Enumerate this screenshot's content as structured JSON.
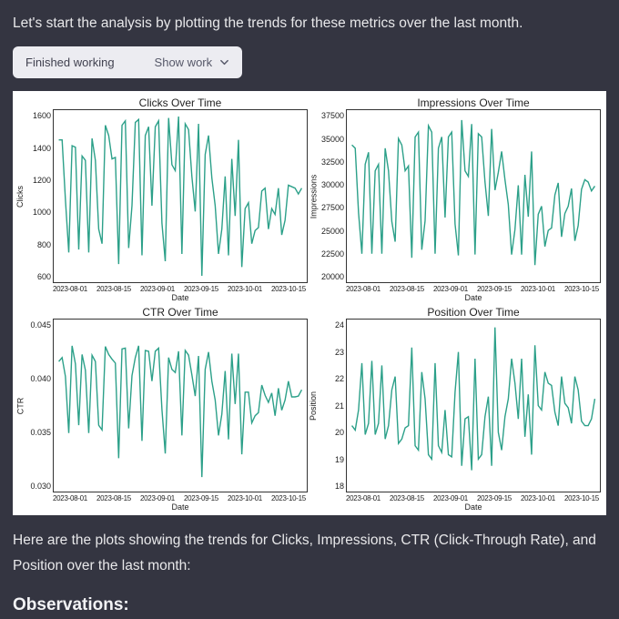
{
  "intro": "Let's start the analysis by plotting the trends for these metrics over the last month.",
  "pill": {
    "status": "Finished working",
    "action": "Show work"
  },
  "post": "Here are the plots showing the trends for Clicks, Impressions, CTR (Click-Through Rate), and Position over the last month:",
  "obs_heading": "Observations:",
  "chart": {
    "background_color": "#ffffff",
    "line_color": "#2ca089",
    "line_width": 1.4,
    "border_color": "#333333",
    "text_color": "#222222",
    "title_fontsize": 12,
    "tick_fontsize": 9,
    "x_ticks": [
      "2023-08-01",
      "2023-08-15",
      "2023-09-01",
      "2023-09-15",
      "2023-10-01",
      "2023-10-15"
    ],
    "x_label": "Date",
    "subplots": [
      {
        "title": "Clicks Over Time",
        "ylabel": "Clicks",
        "ylim": [
          520,
          1650
        ],
        "yticks": [
          "1600",
          "1400",
          "1200",
          "1000",
          "800",
          "600"
        ],
        "data": [
          1470,
          1470,
          1060,
          700,
          1430,
          1420,
          720,
          1360,
          1330,
          700,
          1480,
          1330,
          860,
          760,
          1570,
          1500,
          1340,
          1350,
          620,
          1570,
          1600,
          730,
          1020,
          1590,
          1610,
          680,
          1500,
          1560,
          1020,
          1560,
          1600,
          900,
          640,
          1620,
          1300,
          1260,
          1630,
          690,
          1580,
          1540,
          1220,
          980,
          1580,
          540,
          1370,
          1500,
          1210,
          1020,
          690,
          860,
          1220,
          680,
          1340,
          950,
          1470,
          600,
          1000,
          1040,
          760,
          850,
          870,
          1120,
          1140,
          860,
          1000,
          960,
          1140,
          820,
          920,
          1160,
          1150,
          1140,
          1100,
          1140
        ]
      },
      {
        "title": "Impressions Over Time",
        "ylabel": "Impressions",
        "ylim": [
          17500,
          38000
        ],
        "yticks": [
          "37500",
          "35000",
          "32500",
          "30000",
          "27500",
          "25000",
          "22500",
          "20000"
        ],
        "data": [
          34100,
          33700,
          25700,
          20600,
          31700,
          33200,
          20600,
          30900,
          31700,
          20600,
          33700,
          30900,
          24600,
          22100,
          34900,
          34100,
          30900,
          31500,
          20100,
          35100,
          35700,
          21100,
          24700,
          36500,
          35700,
          20600,
          33700,
          35100,
          25100,
          35100,
          35700,
          24300,
          20400,
          37200,
          30900,
          30200,
          36700,
          20500,
          35500,
          35100,
          29500,
          25300,
          36100,
          28500,
          30700,
          33300,
          29800,
          26700,
          20500,
          23600,
          29100,
          20500,
          30400,
          25200,
          33300,
          19200,
          25500,
          26500,
          21500,
          23500,
          23800,
          27900,
          29400,
          22700,
          25600,
          26500,
          28700,
          22200,
          24100,
          28600,
          29800,
          29500,
          28400,
          29000
        ]
      },
      {
        "title": "CTR Over Time",
        "ylabel": "CTR",
        "ylim": [
          0.027,
          0.048
        ],
        "yticks": [
          "0.045",
          "0.040",
          "0.035",
          "0.030"
        ],
        "data": [
          0.0431,
          0.0436,
          0.0412,
          0.034,
          0.0451,
          0.0428,
          0.035,
          0.044,
          0.042,
          0.034,
          0.0439,
          0.0431,
          0.035,
          0.0344,
          0.045,
          0.044,
          0.0434,
          0.0429,
          0.0308,
          0.0447,
          0.0448,
          0.0346,
          0.0413,
          0.0436,
          0.0451,
          0.033,
          0.0445,
          0.0444,
          0.0406,
          0.0444,
          0.0448,
          0.037,
          0.0314,
          0.0436,
          0.0421,
          0.0417,
          0.0444,
          0.0337,
          0.0445,
          0.0439,
          0.0414,
          0.0387,
          0.0438,
          0.0284,
          0.0421,
          0.0443,
          0.0406,
          0.0382,
          0.0337,
          0.0364,
          0.0419,
          0.0332,
          0.0441,
          0.0377,
          0.0441,
          0.0313,
          0.0392,
          0.0392,
          0.0353,
          0.0362,
          0.0366,
          0.0401,
          0.0388,
          0.0379,
          0.0391,
          0.0362,
          0.0397,
          0.0369,
          0.0382,
          0.0406,
          0.0386,
          0.0386,
          0.0387,
          0.0395
        ]
      },
      {
        "title": "Position Over Time",
        "ylabel": "Position",
        "ylim": [
          17.4,
          24.8
        ],
        "yticks": [
          "24",
          "23",
          "22",
          "21",
          "20",
          "19",
          "18"
        ],
        "data": [
          20.2,
          20.0,
          20.9,
          23.0,
          19.8,
          20.3,
          23.1,
          19.8,
          20.3,
          22.9,
          19.6,
          20.2,
          21.8,
          22.4,
          19.4,
          19.6,
          20.1,
          20.2,
          23.7,
          19.3,
          19.1,
          22.6,
          21.4,
          18.9,
          18.7,
          23.0,
          19.3,
          19.0,
          20.9,
          18.9,
          18.8,
          21.7,
          23.5,
          18.4,
          20.5,
          20.6,
          18.2,
          23.2,
          18.7,
          18.9,
          20.6,
          21.5,
          18.4,
          24.6,
          19.9,
          19.1,
          20.6,
          21.4,
          23.2,
          22.1,
          20.5,
          23.2,
          19.7,
          21.6,
          18.9,
          23.8,
          21.1,
          20.9,
          22.6,
          22.1,
          22.0,
          20.8,
          20.2,
          22.4,
          21.2,
          21.0,
          20.3,
          22.4,
          21.8,
          20.4,
          20.2,
          20.2,
          20.5,
          21.4
        ]
      }
    ]
  }
}
